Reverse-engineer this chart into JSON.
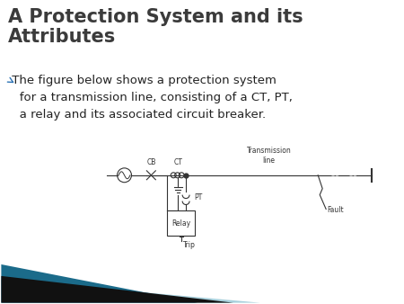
{
  "title_line1": "A Protection System and its",
  "title_line2": "Attributes",
  "title_color": "#3B3B3B",
  "title_fontsize": 15,
  "bullet_text": " The figure below shows a protection system\n   for a transmission line, consisting of a CT, PT,\n   a relay and its associated circuit breaker.",
  "bullet_color": "#222222",
  "bullet_fontsize": 9.5,
  "background_color": "#FFFFFF",
  "teal_dark": "#1B6B8A",
  "teal_light": "#A8D0DC",
  "teal_black": "#111111",
  "diagram_line_color": "#333333",
  "diagram_text_color": "#333333",
  "diagram_fontsize": 5.5
}
